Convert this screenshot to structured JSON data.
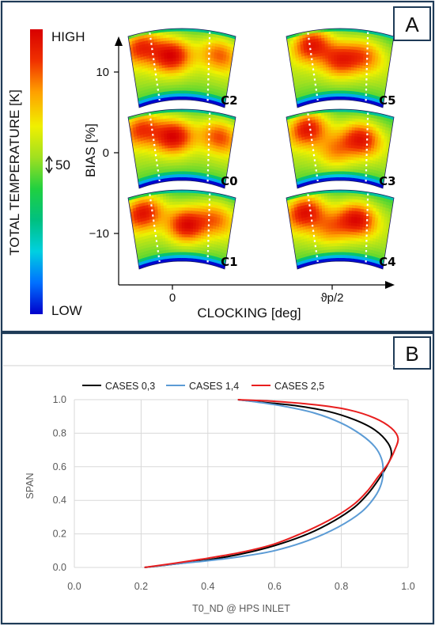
{
  "panels": {
    "a": {
      "tag": "A"
    },
    "b": {
      "tag": "B"
    }
  },
  "colorbar": {
    "title": "TOTAL TEMPERATURE [K]",
    "high_label": "HIGH",
    "low_label": "LOW",
    "scale_label": "50",
    "colors": [
      "#0000cc",
      "#0070ff",
      "#00d0e0",
      "#00c080",
      "#20d040",
      "#a0e020",
      "#f0f000",
      "#ffa000",
      "#f03000",
      "#d80000"
    ]
  },
  "chart_data": [
    {
      "type": "heatmap",
      "title": "",
      "xlabel": "CLOCKING [deg]",
      "ylabel": "BIAS [%]",
      "x_ticks": [
        "0",
        "ϑp/2"
      ],
      "y_ticks": [
        "10",
        "0",
        "−10"
      ],
      "ylim": [
        -16,
        15
      ],
      "cases": [
        {
          "label": "C2",
          "clocking": "0",
          "bias": 10,
          "hotspots": [
            {
              "u": 0.4,
              "v": 0.38,
              "strength": 1.0
            },
            {
              "u": 0.1,
              "v": 0.18,
              "strength": 0.9
            },
            {
              "u": 0.88,
              "v": 0.3,
              "strength": 0.7
            }
          ]
        },
        {
          "label": "C0",
          "clocking": "0",
          "bias": 0,
          "hotspots": [
            {
              "u": 0.42,
              "v": 0.38,
              "strength": 1.0
            },
            {
              "u": 0.1,
              "v": 0.2,
              "strength": 0.85
            },
            {
              "u": 0.88,
              "v": 0.32,
              "strength": 0.75
            }
          ]
        },
        {
          "label": "C1",
          "clocking": "0",
          "bias": -10,
          "hotspots": [
            {
              "u": 0.12,
              "v": 0.25,
              "strength": 1.0
            },
            {
              "u": 0.55,
              "v": 0.5,
              "strength": 0.95
            },
            {
              "u": 0.85,
              "v": 0.35,
              "strength": 0.6
            }
          ]
        },
        {
          "label": "C5",
          "clocking": "ϑp/2",
          "bias": 10,
          "hotspots": [
            {
              "u": 0.22,
              "v": 0.18,
              "strength": 1.0
            },
            {
              "u": 0.5,
              "v": 0.45,
              "strength": 0.75
            },
            {
              "u": 0.75,
              "v": 0.35,
              "strength": 0.6
            }
          ]
        },
        {
          "label": "C3",
          "clocking": "ϑp/2",
          "bias": 0,
          "hotspots": [
            {
              "u": 0.18,
              "v": 0.22,
              "strength": 1.0
            },
            {
              "u": 0.72,
              "v": 0.4,
              "strength": 0.9
            },
            {
              "u": 0.45,
              "v": 0.6,
              "strength": 0.5
            }
          ]
        },
        {
          "label": "C4",
          "clocking": "ϑp/2",
          "bias": -10,
          "hotspots": [
            {
              "u": 0.15,
              "v": 0.25,
              "strength": 1.0
            },
            {
              "u": 0.68,
              "v": 0.4,
              "strength": 0.95
            },
            {
              "u": 0.4,
              "v": 0.55,
              "strength": 0.5
            }
          ]
        }
      ]
    },
    {
      "type": "line",
      "title": "",
      "xlabel": "T0_ND @ HPS INLET",
      "ylabel": "SPAN",
      "xlim": [
        0,
        1.0
      ],
      "ylim": [
        0,
        1.0
      ],
      "x_ticks": [
        "0.0",
        "0.2",
        "0.4",
        "0.6",
        "0.8",
        "1.0"
      ],
      "y_ticks": [
        "0.0",
        "0.2",
        "0.4",
        "0.6",
        "0.8",
        "1.0"
      ],
      "grid": true,
      "legend_position": "top",
      "series": [
        {
          "name": "CASES 0,3",
          "color": "#000000",
          "points": [
            [
              0.21,
              0.0
            ],
            [
              0.3,
              0.02
            ],
            [
              0.4,
              0.045
            ],
            [
              0.5,
              0.08
            ],
            [
              0.6,
              0.13
            ],
            [
              0.7,
              0.2
            ],
            [
              0.78,
              0.28
            ],
            [
              0.84,
              0.36
            ],
            [
              0.88,
              0.44
            ],
            [
              0.91,
              0.52
            ],
            [
              0.935,
              0.6
            ],
            [
              0.95,
              0.67
            ],
            [
              0.94,
              0.74
            ],
            [
              0.9,
              0.82
            ],
            [
              0.84,
              0.88
            ],
            [
              0.76,
              0.93
            ],
            [
              0.66,
              0.965
            ],
            [
              0.56,
              0.985
            ],
            [
              0.49,
              1.0
            ]
          ]
        },
        {
          "name": "CASES 1,4",
          "color": "#5b9bd5",
          "points": [
            [
              0.21,
              0.0
            ],
            [
              0.3,
              0.02
            ],
            [
              0.4,
              0.04
            ],
            [
              0.5,
              0.065
            ],
            [
              0.6,
              0.1
            ],
            [
              0.7,
              0.16
            ],
            [
              0.79,
              0.24
            ],
            [
              0.86,
              0.33
            ],
            [
              0.9,
              0.42
            ],
            [
              0.92,
              0.5
            ],
            [
              0.925,
              0.58
            ],
            [
              0.92,
              0.65
            ],
            [
              0.9,
              0.72
            ],
            [
              0.86,
              0.79
            ],
            [
              0.8,
              0.86
            ],
            [
              0.72,
              0.92
            ],
            [
              0.63,
              0.96
            ],
            [
              0.55,
              0.985
            ],
            [
              0.49,
              1.0
            ]
          ]
        },
        {
          "name": "CASES 2,5",
          "color": "#e81e1e",
          "points": [
            [
              0.21,
              0.0
            ],
            [
              0.3,
              0.025
            ],
            [
              0.4,
              0.055
            ],
            [
              0.5,
              0.09
            ],
            [
              0.6,
              0.14
            ],
            [
              0.7,
              0.22
            ],
            [
              0.78,
              0.3
            ],
            [
              0.84,
              0.38
            ],
            [
              0.88,
              0.46
            ],
            [
              0.91,
              0.54
            ],
            [
              0.94,
              0.62
            ],
            [
              0.96,
              0.7
            ],
            [
              0.97,
              0.77
            ],
            [
              0.95,
              0.83
            ],
            [
              0.9,
              0.89
            ],
            [
              0.82,
              0.94
            ],
            [
              0.72,
              0.97
            ],
            [
              0.6,
              0.99
            ],
            [
              0.49,
              1.0
            ]
          ]
        }
      ]
    }
  ]
}
